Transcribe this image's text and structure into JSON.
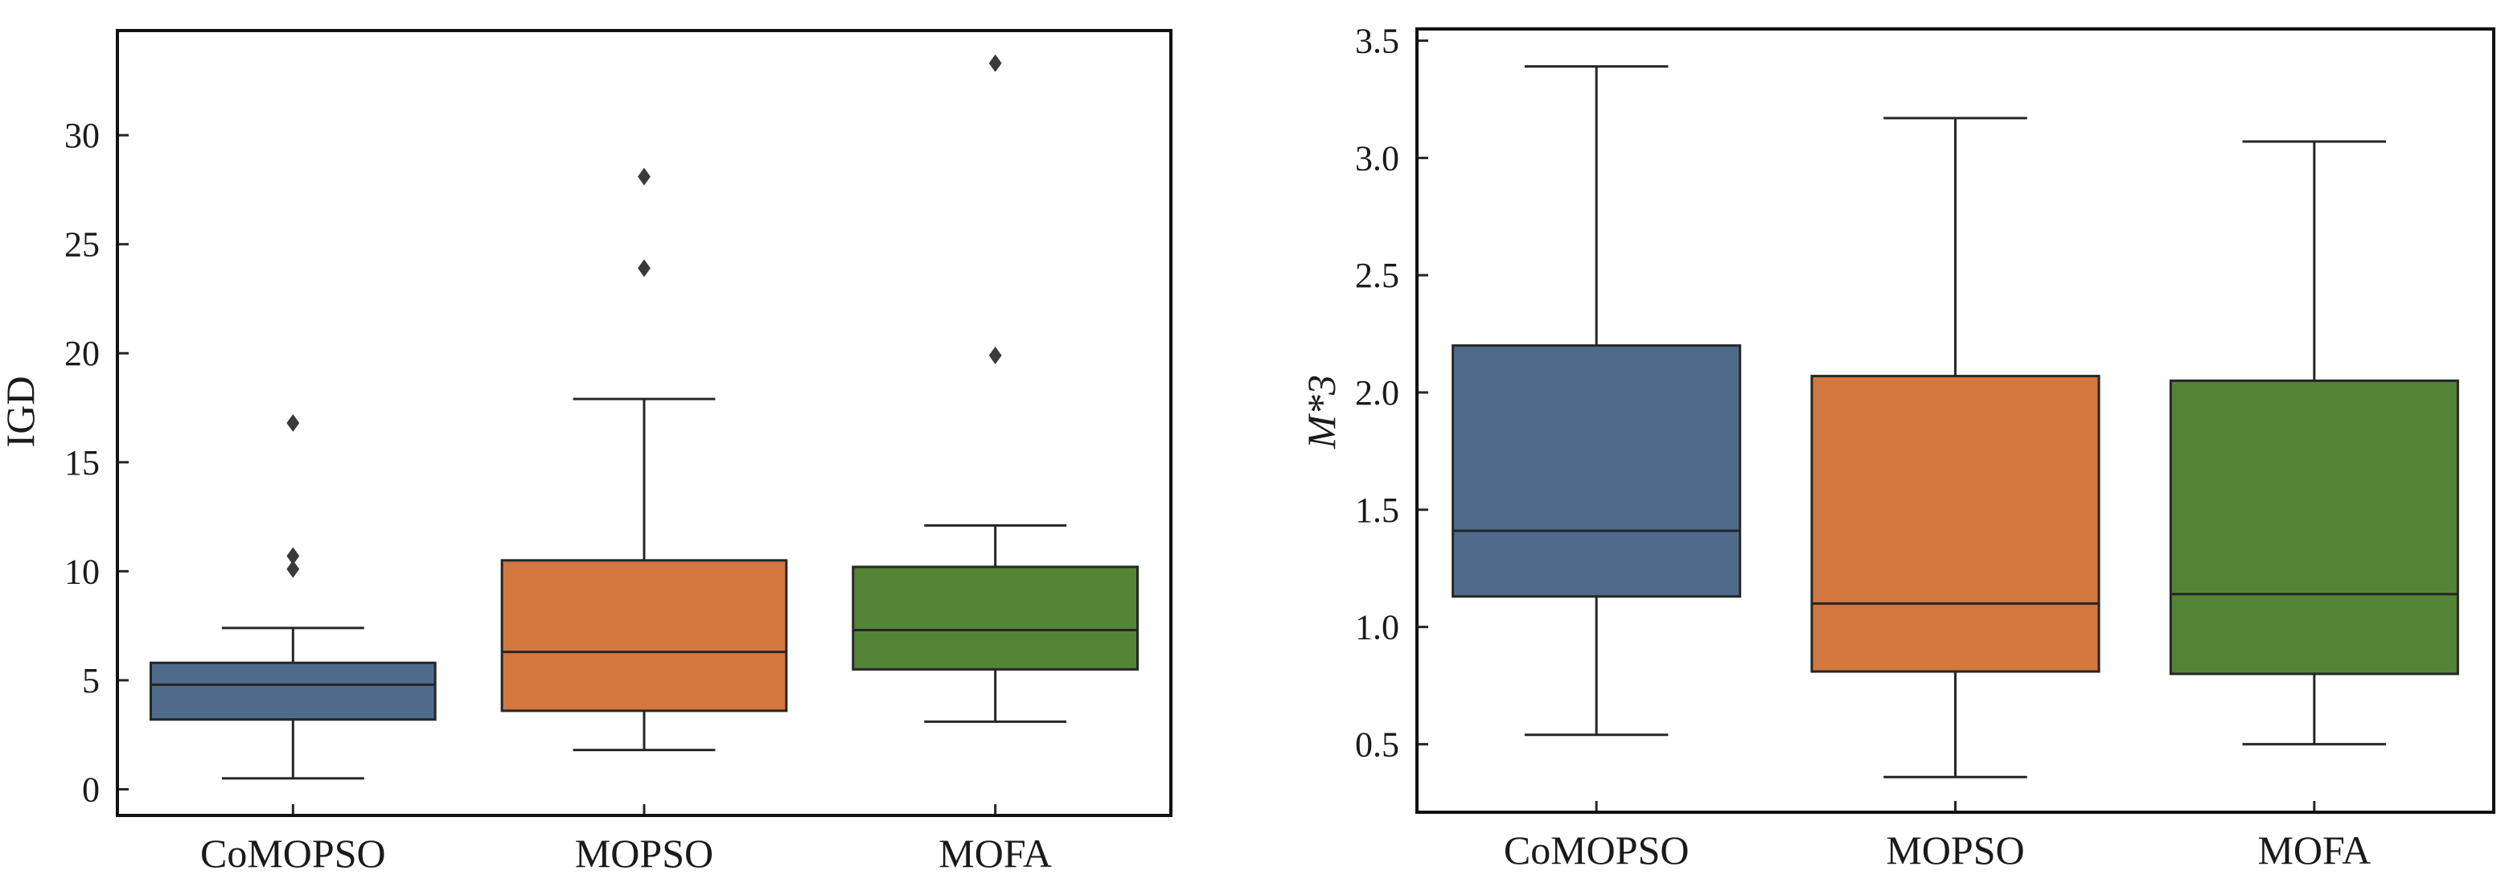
{
  "chart_data": [
    {
      "type": "box",
      "ylabel": "IGD",
      "categories": [
        "CoMOPSO",
        "MOPSO",
        "MOFA"
      ],
      "ylim": [
        -1.2,
        34.8
      ],
      "yticks": [
        0,
        5,
        10,
        15,
        20,
        25,
        30
      ],
      "ytick_labels": [
        "0",
        "5",
        "10",
        "15",
        "20",
        "25",
        "30"
      ],
      "boxes": [
        {
          "category": "CoMOPSO",
          "color": "#4f6b8c",
          "whisker_low": 0.5,
          "q1": 3.2,
          "median": 4.8,
          "q3": 5.8,
          "whisker_high": 7.4,
          "outliers": [
            10.1,
            10.7,
            16.8
          ]
        },
        {
          "category": "MOPSO",
          "color": "#d3773e",
          "whisker_low": 1.8,
          "q1": 3.6,
          "median": 6.3,
          "q3": 10.5,
          "whisker_high": 17.9,
          "outliers": [
            23.9,
            28.1
          ]
        },
        {
          "category": "MOFA",
          "color": "#548537",
          "whisker_low": 3.1,
          "q1": 5.5,
          "median": 7.3,
          "q3": 10.2,
          "whisker_high": 12.1,
          "outliers": [
            19.9,
            33.3
          ]
        }
      ],
      "grid": false,
      "legend": "none"
    },
    {
      "type": "box",
      "ylabel": "M*3",
      "categories": [
        "CoMOPSO",
        "MOPSO",
        "MOFA"
      ],
      "ylim": [
        0.21,
        3.55
      ],
      "yticks": [
        0.5,
        1.0,
        1.5,
        2.0,
        2.5,
        3.0,
        3.5
      ],
      "ytick_labels": [
        "0.5",
        "1.0",
        "1.5",
        "2.0",
        "2.5",
        "3.0",
        "3.5"
      ],
      "boxes": [
        {
          "category": "CoMOPSO",
          "color": "#4f6b8c",
          "whisker_low": 0.54,
          "q1": 1.13,
          "median": 1.41,
          "q3": 2.2,
          "whisker_high": 3.39,
          "outliers": []
        },
        {
          "category": "MOPSO",
          "color": "#d3773e",
          "whisker_low": 0.36,
          "q1": 0.81,
          "median": 1.1,
          "q3": 2.07,
          "whisker_high": 3.17,
          "outliers": []
        },
        {
          "category": "MOFA",
          "color": "#548537",
          "whisker_low": 0.5,
          "q1": 0.8,
          "median": 1.14,
          "q3": 2.05,
          "whisker_high": 3.07,
          "outliers": []
        }
      ],
      "grid": false,
      "legend": "none"
    }
  ]
}
